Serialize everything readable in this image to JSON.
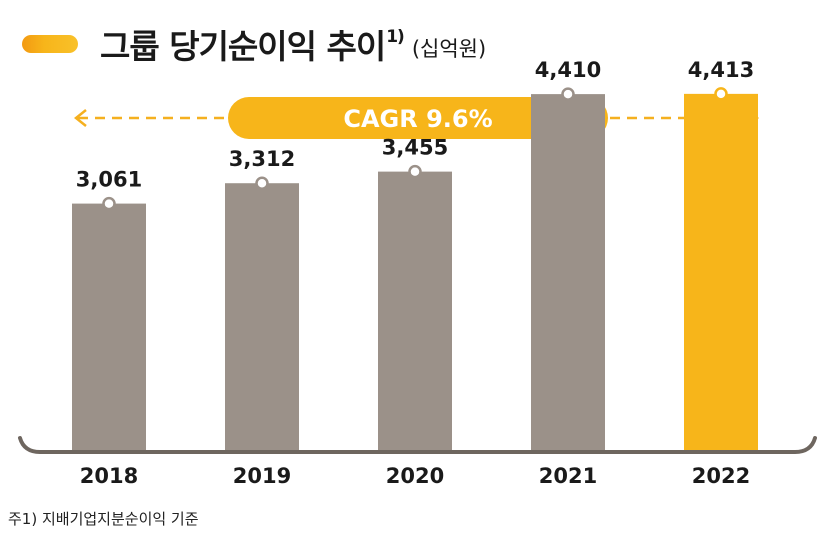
{
  "header": {
    "title": "그룹 당기순이익 추이",
    "title_sup": "1)",
    "unit": "(십억원)"
  },
  "cagr": {
    "label": "CAGR 9.6%"
  },
  "footnote": "주1) 지배기업지분순이익 기준",
  "colors": {
    "bar": "#9b9189",
    "highlight": "#f7b51a",
    "accent": "#f39a12",
    "axis": "#6e665f",
    "cagr_arrow": "#f5b01f"
  },
  "chart_data": {
    "type": "bar",
    "title": "그룹 당기순이익 추이",
    "ylabel": "(십억원)",
    "xlabel": "",
    "categories": [
      "2018",
      "2019",
      "2020",
      "2021",
      "2022"
    ],
    "values": [
      3061,
      3312,
      3455,
      4410,
      4413
    ],
    "value_labels": [
      "3,061",
      "3,312",
      "3,455",
      "4,410",
      "4,413"
    ],
    "highlight_index": 4,
    "ylim": [
      0,
      5200
    ],
    "grid": false,
    "annotation": "CAGR 9.6%"
  }
}
